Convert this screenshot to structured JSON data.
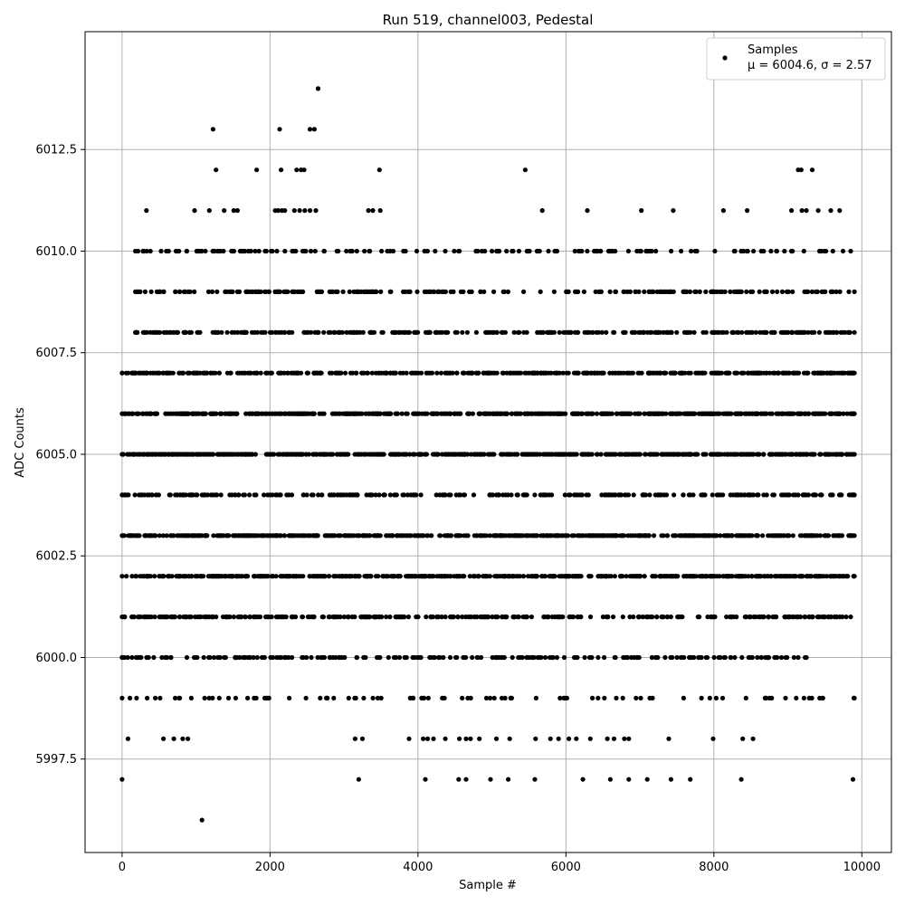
{
  "chart_data": {
    "type": "scatter",
    "title": "Run 519, channel003, Pedestal",
    "xlabel": "Sample #",
    "ylabel": "ADC Counts",
    "xlim": [
      -500,
      10400
    ],
    "ylim": [
      5995.2,
      6015.4
    ],
    "xticks": [
      0,
      2000,
      4000,
      6000,
      8000,
      10000
    ],
    "yticks": [
      5997.5,
      6000.0,
      6002.5,
      6005.0,
      6007.5,
      6010.0,
      6012.5
    ],
    "ytick_labels": [
      "5997.5",
      "6000.0",
      "6002.5",
      "6005.0",
      "6007.5",
      "6010.0",
      "6012.5"
    ],
    "grid": true,
    "legend": {
      "placement": "top-right",
      "series_name": "Samples",
      "stats_label": "μ = 6004.6, σ = 2.57"
    },
    "marker_color": "#000000",
    "n_samples": 10000,
    "mean": 6004.6,
    "std": 2.57,
    "series": [
      {
        "name": "Samples",
        "points": [
          [
            1080,
            5996
          ],
          [
            2650,
            6014
          ],
          [
            1230,
            6013
          ],
          [
            2130,
            6013
          ],
          [
            2540,
            6013
          ],
          [
            2600,
            6013
          ],
          [
            1270,
            6012
          ],
          [
            1820,
            6012
          ],
          [
            2150,
            6012
          ],
          [
            2360,
            6012
          ],
          [
            2420,
            6012
          ],
          [
            2460,
            6012
          ],
          [
            3480,
            6012
          ],
          [
            5450,
            6012
          ],
          [
            9140,
            6012
          ],
          [
            9180,
            6012
          ],
          [
            9330,
            6012
          ],
          [
            330,
            6011
          ],
          [
            980,
            6011
          ],
          [
            1180,
            6011
          ],
          [
            1380,
            6011
          ],
          [
            1510,
            6011
          ],
          [
            1560,
            6011
          ],
          [
            2070,
            6011
          ],
          [
            2110,
            6011
          ],
          [
            2160,
            6011
          ],
          [
            2330,
            6011
          ],
          [
            2400,
            6011
          ],
          [
            2470,
            6011
          ],
          [
            2540,
            6011
          ],
          [
            2620,
            6011
          ],
          [
            3330,
            6011
          ],
          [
            3390,
            6011
          ],
          [
            3490,
            6011
          ],
          [
            5680,
            6011
          ],
          [
            6290,
            6011
          ],
          [
            7020,
            6011
          ],
          [
            7450,
            6011
          ],
          [
            8130,
            6011
          ],
          [
            8450,
            6011
          ],
          [
            9050,
            6011
          ],
          [
            9190,
            6011
          ],
          [
            9250,
            6011
          ],
          [
            9410,
            6011
          ],
          [
            9580,
            6011
          ],
          [
            9700,
            6011
          ],
          [
            0,
            5997
          ],
          [
            1250,
            6010
          ],
          [
            2200,
            6011
          ],
          [
            3200,
            5997
          ],
          [
            4100,
            5997
          ],
          [
            4550,
            5997
          ],
          [
            4650,
            5997
          ],
          [
            4980,
            5997
          ],
          [
            5220,
            5997
          ],
          [
            5580,
            5997
          ],
          [
            6230,
            5997
          ],
          [
            6600,
            5997
          ],
          [
            6850,
            5997
          ],
          [
            7100,
            5997
          ],
          [
            7420,
            5997
          ],
          [
            7680,
            5997
          ],
          [
            8370,
            5997
          ],
          [
            9880,
            5997
          ],
          [
            80,
            5998
          ],
          [
            560,
            5998
          ],
          [
            700,
            5998
          ],
          [
            820,
            5998
          ],
          [
            890,
            5998
          ],
          [
            3150,
            5998
          ],
          [
            3250,
            5998
          ],
          [
            3880,
            5998
          ],
          [
            4070,
            5998
          ],
          [
            4130,
            5998
          ],
          [
            4210,
            5998
          ],
          [
            4370,
            5998
          ],
          [
            4560,
            5998
          ],
          [
            4650,
            5998
          ],
          [
            4710,
            5998
          ],
          [
            4830,
            5998
          ],
          [
            5060,
            5998
          ],
          [
            5240,
            5998
          ],
          [
            5590,
            5998
          ],
          [
            5790,
            5998
          ],
          [
            5900,
            5998
          ],
          [
            6040,
            5998
          ],
          [
            6140,
            5998
          ],
          [
            6330,
            5998
          ],
          [
            6560,
            5998
          ],
          [
            6650,
            5998
          ],
          [
            6790,
            5998
          ],
          [
            6850,
            5998
          ],
          [
            7390,
            5998
          ],
          [
            7990,
            5998
          ],
          [
            8390,
            5998
          ],
          [
            8530,
            5998
          ]
        ],
        "dense_rows": [
          {
            "y": 5999,
            "x_range": [
              0,
              9900
            ],
            "n": 90
          },
          {
            "y": 6000,
            "x_range": [
              0,
              9250
            ],
            "n": 230
          },
          {
            "y": 6001,
            "x_range": [
              0,
              9850
            ],
            "n": 330
          },
          {
            "y": 6002,
            "x_range": [
              0,
              9900
            ],
            "n": 540
          },
          {
            "y": 6003,
            "x_range": [
              0,
              9900
            ],
            "n": 560
          },
          {
            "y": 6004,
            "x_range": [
              0,
              9900
            ],
            "n": 300
          },
          {
            "y": 6005,
            "x_range": [
              0,
              9900
            ],
            "n": 620
          },
          {
            "y": 6006,
            "x_range": [
              0,
              9900
            ],
            "n": 560
          },
          {
            "y": 6007,
            "x_range": [
              0,
              9900
            ],
            "n": 460
          },
          {
            "y": 6008,
            "x_range": [
              180,
              9900
            ],
            "n": 320
          },
          {
            "y": 6009,
            "x_range": [
              180,
              9900
            ],
            "n": 230
          },
          {
            "y": 6010,
            "x_range": [
              180,
              9850
            ],
            "n": 160
          }
        ]
      }
    ]
  }
}
